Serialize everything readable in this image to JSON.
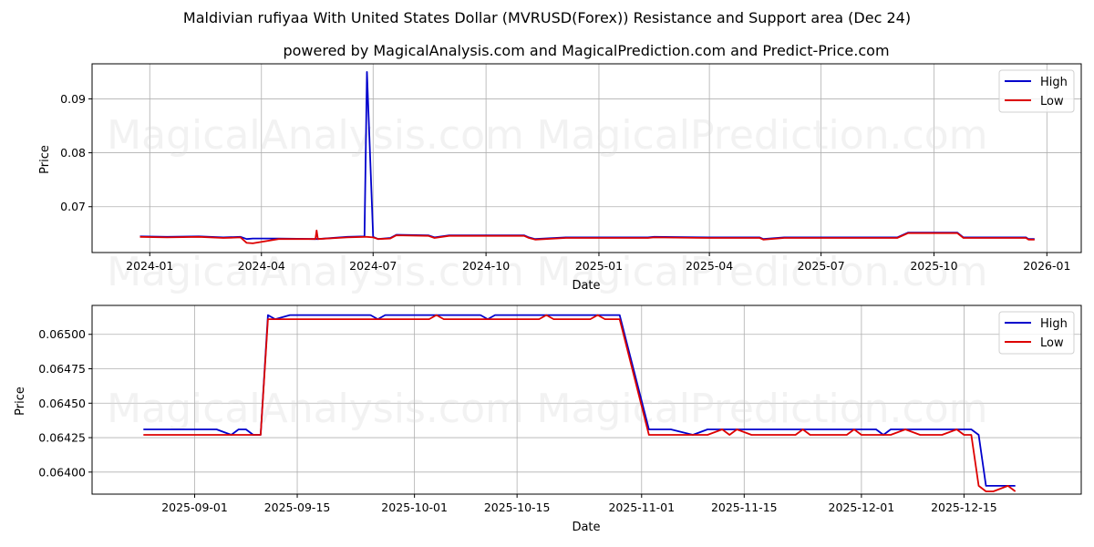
{
  "header": {
    "title": "Maldivian rufiyaa With United States Dollar (MVRUSD(Forex)) Resistance and Support area (Dec 24)",
    "subtitle": "powered by MagicalAnalysis.com and MagicalPrediction.com and Predict-Price.com"
  },
  "watermarks": [
    "MagicalAnalysis.com",
    "MagicalPrediction.com"
  ],
  "colors": {
    "high": "#0000cc",
    "low": "#dd0000",
    "grid": "#b0b0b0"
  },
  "legend": {
    "high_label": "High",
    "low_label": "Low"
  },
  "chart_data": [
    {
      "type": "line",
      "title": "Full history",
      "xlabel": "Date",
      "ylabel": "Price",
      "ylim": [
        0.0615,
        0.0965
      ],
      "x_ticks": [
        "2024-01",
        "2024-04",
        "2024-07",
        "2024-10",
        "2025-01",
        "2025-04",
        "2025-07",
        "2025-10",
        "2026-01"
      ],
      "y_ticks": [
        "0.07",
        "0.08",
        "0.09"
      ],
      "grid": true,
      "legend_position": "upper right",
      "x": [
        "2023-12-24",
        "2024-01-15",
        "2024-02-10",
        "2024-03-01",
        "2024-03-15",
        "2024-03-20",
        "2024-03-25",
        "2024-04-15",
        "2024-05-15",
        "2024-05-16",
        "2024-05-17",
        "2024-06-10",
        "2024-06-24",
        "2024-06-26",
        "2024-07-01",
        "2024-07-05",
        "2024-07-15",
        "2024-07-20",
        "2024-08-15",
        "2024-08-20",
        "2024-09-01",
        "2024-10-01",
        "2024-10-15",
        "2024-11-01",
        "2024-11-05",
        "2024-11-10",
        "2024-12-05",
        "2025-01-01",
        "2025-02-10",
        "2025-02-15",
        "2025-04-01",
        "2025-05-12",
        "2025-05-15",
        "2025-06-01",
        "2025-07-01",
        "2025-09-01",
        "2025-09-10",
        "2025-10-01",
        "2025-10-20",
        "2025-10-25",
        "2025-12-01",
        "2025-12-15",
        "2025-12-17",
        "2025-12-22"
      ],
      "series": [
        {
          "name": "High",
          "values": [
            0.0645,
            0.0644,
            0.0645,
            0.0643,
            0.0644,
            0.064,
            0.0641,
            0.0641,
            0.064,
            0.064,
            0.064,
            0.0644,
            0.0645,
            0.095,
            0.0644,
            0.064,
            0.0642,
            0.0648,
            0.0647,
            0.0643,
            0.0647,
            0.0647,
            0.0647,
            0.0647,
            0.0643,
            0.064,
            0.0643,
            0.0643,
            0.0643,
            0.0644,
            0.0643,
            0.0643,
            0.064,
            0.0643,
            0.0643,
            0.0643,
            0.0652,
            0.0652,
            0.0652,
            0.0643,
            0.0643,
            0.0643,
            0.064,
            0.064
          ]
        },
        {
          "name": "Low",
          "values": [
            0.0644,
            0.0643,
            0.0644,
            0.0642,
            0.0643,
            0.0633,
            0.0632,
            0.064,
            0.064,
            0.0656,
            0.064,
            0.0643,
            0.0644,
            0.0644,
            0.0643,
            0.064,
            0.0641,
            0.0647,
            0.0646,
            0.0642,
            0.0646,
            0.0646,
            0.0646,
            0.0646,
            0.0642,
            0.0639,
            0.0642,
            0.0642,
            0.0642,
            0.0643,
            0.0642,
            0.0642,
            0.0639,
            0.0642,
            0.0642,
            0.0642,
            0.0651,
            0.0651,
            0.0651,
            0.0642,
            0.0642,
            0.0642,
            0.0639,
            0.0639
          ]
        }
      ]
    },
    {
      "type": "line",
      "title": "Recent (zoomed)",
      "xlabel": "Date",
      "ylabel": "Price",
      "ylim": [
        0.06384,
        0.06521
      ],
      "x_ticks": [
        "2025-09-01",
        "2025-09-15",
        "2025-10-01",
        "2025-10-15",
        "2025-11-01",
        "2025-11-15",
        "2025-12-01",
        "2025-12-15"
      ],
      "y_ticks": [
        "0.06400",
        "0.06425",
        "0.06450",
        "0.06475",
        "0.06500"
      ],
      "grid": true,
      "legend_position": "upper right",
      "x": [
        "2025-08-25",
        "2025-09-04",
        "2025-09-06",
        "2025-09-07",
        "2025-09-08",
        "2025-09-09",
        "2025-09-10",
        "2025-09-11",
        "2025-09-12",
        "2025-09-14",
        "2025-09-15",
        "2025-09-25",
        "2025-09-26",
        "2025-09-27",
        "2025-10-03",
        "2025-10-04",
        "2025-10-05",
        "2025-10-10",
        "2025-10-11",
        "2025-10-12",
        "2025-10-18",
        "2025-10-19",
        "2025-10-20",
        "2025-10-25",
        "2025-10-26",
        "2025-10-27",
        "2025-10-29",
        "2025-11-02",
        "2025-11-05",
        "2025-11-08",
        "2025-11-10",
        "2025-11-12",
        "2025-11-13",
        "2025-11-14",
        "2025-11-16",
        "2025-11-17",
        "2025-11-22",
        "2025-11-23",
        "2025-11-24",
        "2025-11-29",
        "2025-11-30",
        "2025-12-01",
        "2025-12-03",
        "2025-12-04",
        "2025-12-05",
        "2025-12-07",
        "2025-12-09",
        "2025-12-12",
        "2025-12-14",
        "2025-12-15",
        "2025-12-16",
        "2025-12-17",
        "2025-12-18",
        "2025-12-19",
        "2025-12-21",
        "2025-12-22"
      ],
      "series": [
        {
          "name": "High",
          "values": [
            0.06431,
            0.06431,
            0.06427,
            0.06431,
            0.06431,
            0.06427,
            0.06427,
            0.06514,
            0.06511,
            0.06514,
            0.06514,
            0.06514,
            0.06511,
            0.06514,
            0.06514,
            0.06514,
            0.06514,
            0.06514,
            0.06511,
            0.06514,
            0.06514,
            0.06514,
            0.06514,
            0.06514,
            0.06514,
            0.06514,
            0.06514,
            0.06431,
            0.06431,
            0.06427,
            0.06431,
            0.06431,
            0.06431,
            0.06431,
            0.06431,
            0.06431,
            0.06431,
            0.06431,
            0.06431,
            0.06431,
            0.06431,
            0.06431,
            0.06431,
            0.06427,
            0.06431,
            0.06431,
            0.06431,
            0.06431,
            0.06431,
            0.06431,
            0.06431,
            0.06427,
            0.0639,
            0.0639,
            0.0639,
            0.0639
          ]
        },
        {
          "name": "Low",
          "values": [
            0.06427,
            0.06427,
            0.06427,
            0.06427,
            0.06427,
            0.06427,
            0.06427,
            0.06511,
            0.06511,
            0.06511,
            0.06511,
            0.06511,
            0.06511,
            0.06511,
            0.06511,
            0.06514,
            0.06511,
            0.06511,
            0.06511,
            0.06511,
            0.06511,
            0.06514,
            0.06511,
            0.06511,
            0.06514,
            0.06511,
            0.06511,
            0.06427,
            0.06427,
            0.06427,
            0.06427,
            0.06431,
            0.06427,
            0.06431,
            0.06427,
            0.06427,
            0.06427,
            0.06431,
            0.06427,
            0.06427,
            0.06431,
            0.06427,
            0.06427,
            0.06427,
            0.06427,
            0.06431,
            0.06427,
            0.06427,
            0.06431,
            0.06427,
            0.06427,
            0.0639,
            0.06386,
            0.06386,
            0.0639,
            0.06386
          ]
        }
      ]
    }
  ]
}
